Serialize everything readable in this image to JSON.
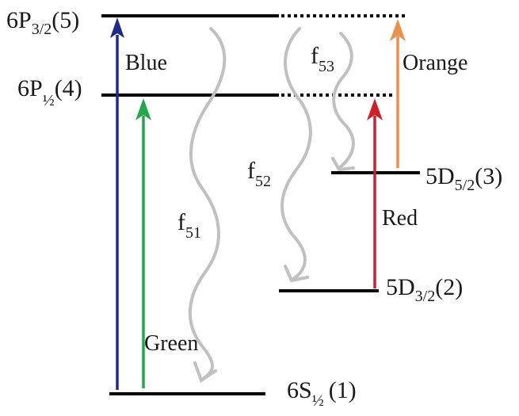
{
  "levels": {
    "p32": {
      "main": "6P",
      "sub": "3/2",
      "index": "(5)"
    },
    "p12": {
      "main": "6P",
      "sub": "½",
      "index": "(4)"
    },
    "d52": {
      "main": "5D",
      "sub": "5/2",
      "index": "(3)"
    },
    "d32": {
      "main": "5D",
      "sub": "3/2",
      "index": "(2)"
    },
    "s12": {
      "main": "6S",
      "sub": "½",
      "index": "(1)"
    }
  },
  "transitions": {
    "blue": {
      "label": "Blue",
      "color": "#1f2a8c"
    },
    "green": {
      "label": "Green",
      "color": "#23a74c"
    },
    "red": {
      "label": "Red",
      "color": "#d01f2a"
    },
    "orange": {
      "label": "Orange",
      "color": "#e8904c"
    }
  },
  "decays": {
    "f51": {
      "main": "f",
      "sub": "51",
      "color": "#c0c0c0"
    },
    "f52": {
      "main": "f",
      "sub": "52",
      "color": "#c0c0c0"
    },
    "f53": {
      "main": "f",
      "sub": "53",
      "color": "#c0c0c0"
    }
  },
  "level_line_color": "#000000"
}
